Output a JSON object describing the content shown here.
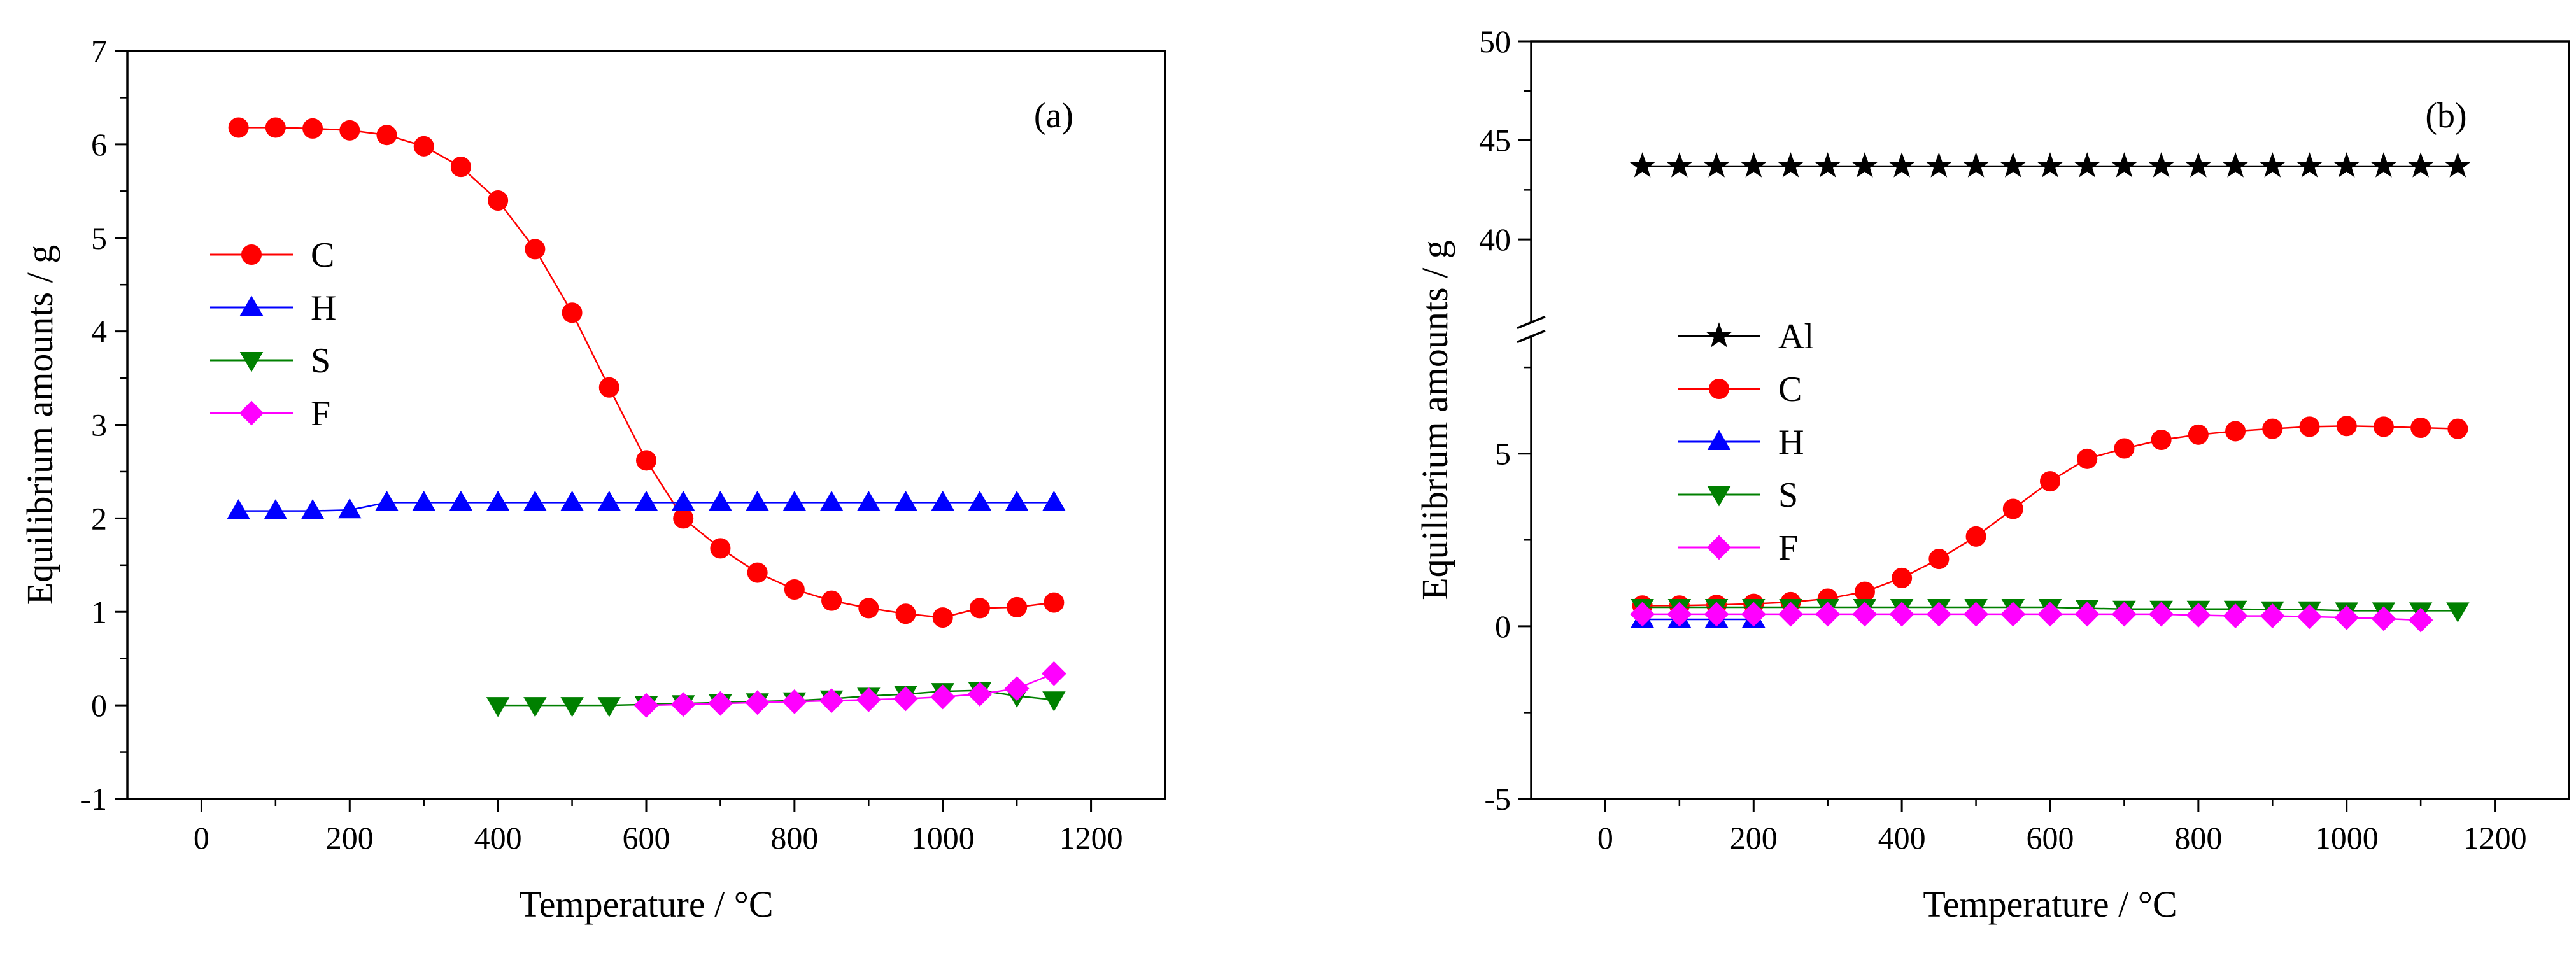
{
  "chart_data": [
    {
      "type": "line",
      "panel_label": "(a)",
      "xlabel": "Temperature / °C",
      "ylabel": "Equilibrium amounts  / g",
      "xlim": [
        -100,
        1300
      ],
      "ylim": [
        -1,
        7
      ],
      "xticks": [
        0,
        200,
        400,
        600,
        800,
        1000,
        1200
      ],
      "yticks": [
        -1,
        0,
        1,
        2,
        3,
        4,
        5,
        6,
        7
      ],
      "legend_position": "center-left",
      "series": [
        {
          "name": "C",
          "color": "#ff0000",
          "marker": "circle",
          "x": [
            50,
            100,
            150,
            200,
            250,
            300,
            350,
            400,
            450,
            500,
            550,
            600,
            650,
            700,
            750,
            800,
            850,
            900,
            950,
            1000,
            1050,
            1100,
            1150
          ],
          "y": [
            6.18,
            6.18,
            6.17,
            6.15,
            6.1,
            5.98,
            5.76,
            5.4,
            4.88,
            4.2,
            3.4,
            2.62,
            2.0,
            1.68,
            1.42,
            1.24,
            1.12,
            1.04,
            0.98,
            0.94,
            1.04,
            1.05,
            1.1
          ]
        },
        {
          "name": "H",
          "color": "#0000ff",
          "marker": "triangle-up",
          "x": [
            50,
            100,
            150,
            200,
            250,
            300,
            350,
            400,
            450,
            500,
            550,
            600,
            650,
            700,
            750,
            800,
            850,
            900,
            950,
            1000,
            1050,
            1100,
            1150
          ],
          "y": [
            2.08,
            2.08,
            2.08,
            2.09,
            2.17,
            2.17,
            2.17,
            2.17,
            2.17,
            2.17,
            2.17,
            2.17,
            2.17,
            2.17,
            2.17,
            2.17,
            2.17,
            2.17,
            2.17,
            2.17,
            2.17,
            2.17,
            2.17
          ]
        },
        {
          "name": "S",
          "color": "#008000",
          "marker": "triangle-down",
          "x": [
            400,
            450,
            500,
            550,
            600,
            650,
            700,
            750,
            800,
            850,
            900,
            950,
            1000,
            1050,
            1100,
            1150
          ],
          "y": [
            0.0,
            0.0,
            0.0,
            0.0,
            0.01,
            0.02,
            0.03,
            0.04,
            0.05,
            0.07,
            0.1,
            0.12,
            0.15,
            0.16,
            0.1,
            0.06
          ]
        },
        {
          "name": "F",
          "color": "#ff00ff",
          "marker": "diamond",
          "x": [
            600,
            650,
            700,
            750,
            800,
            850,
            900,
            950,
            1000,
            1050,
            1100,
            1150
          ],
          "y": [
            0.0,
            0.01,
            0.02,
            0.03,
            0.04,
            0.05,
            0.06,
            0.07,
            0.09,
            0.12,
            0.18,
            0.34
          ]
        }
      ]
    },
    {
      "type": "line",
      "panel_label": "(b)",
      "xlabel": "Temperature / °C",
      "ylabel": "Equilibrium amounts  / g",
      "xlim": [
        -100,
        1300
      ],
      "y_axis_break": {
        "lower_range": [
          -5,
          8
        ],
        "upper_range": [
          36.5,
          50
        ],
        "lower_ticks": [
          -5,
          0,
          5
        ],
        "upper_ticks": [
          40,
          45,
          50
        ]
      },
      "xticks": [
        0,
        200,
        400,
        600,
        800,
        1000,
        1200
      ],
      "legend_position": "center-left",
      "series": [
        {
          "name": "Al",
          "color": "#000000",
          "marker": "star",
          "x": [
            50,
            100,
            150,
            200,
            250,
            300,
            350,
            400,
            450,
            500,
            550,
            600,
            650,
            700,
            750,
            800,
            850,
            900,
            950,
            1000,
            1050,
            1100,
            1150
          ],
          "y": [
            43.7,
            43.7,
            43.7,
            43.7,
            43.7,
            43.7,
            43.7,
            43.7,
            43.7,
            43.7,
            43.7,
            43.7,
            43.7,
            43.7,
            43.7,
            43.7,
            43.7,
            43.7,
            43.7,
            43.7,
            43.7,
            43.7,
            43.7
          ]
        },
        {
          "name": "C",
          "color": "#ff0000",
          "marker": "circle",
          "x": [
            50,
            100,
            150,
            200,
            250,
            300,
            350,
            400,
            450,
            500,
            550,
            600,
            650,
            700,
            750,
            800,
            850,
            900,
            950,
            1000,
            1050,
            1100,
            1150
          ],
          "y": [
            0.6,
            0.6,
            0.62,
            0.65,
            0.7,
            0.8,
            1.0,
            1.4,
            1.95,
            2.6,
            3.4,
            4.2,
            4.85,
            5.15,
            5.4,
            5.55,
            5.65,
            5.72,
            5.78,
            5.8,
            5.78,
            5.75,
            5.72
          ]
        },
        {
          "name": "H",
          "color": "#0000ff",
          "marker": "triangle-up",
          "x": [
            50,
            100,
            150,
            200
          ],
          "y": [
            0.2,
            0.2,
            0.2,
            0.2
          ]
        },
        {
          "name": "S",
          "color": "#008000",
          "marker": "triangle-down",
          "x": [
            50,
            100,
            150,
            200,
            250,
            300,
            350,
            400,
            450,
            500,
            550,
            600,
            650,
            700,
            750,
            800,
            850,
            900,
            950,
            1000,
            1050,
            1100,
            1150
          ],
          "y": [
            0.55,
            0.55,
            0.55,
            0.55,
            0.55,
            0.55,
            0.55,
            0.55,
            0.55,
            0.55,
            0.55,
            0.55,
            0.52,
            0.5,
            0.5,
            0.5,
            0.5,
            0.48,
            0.48,
            0.45,
            0.45,
            0.45,
            0.45
          ]
        },
        {
          "name": "F",
          "color": "#ff00ff",
          "marker": "diamond",
          "x": [
            50,
            100,
            150,
            200,
            250,
            300,
            350,
            400,
            450,
            500,
            550,
            600,
            650,
            700,
            750,
            800,
            850,
            900,
            950,
            1000,
            1050,
            1100
          ],
          "y": [
            0.35,
            0.35,
            0.35,
            0.35,
            0.35,
            0.35,
            0.35,
            0.35,
            0.35,
            0.35,
            0.35,
            0.35,
            0.35,
            0.35,
            0.35,
            0.32,
            0.3,
            0.3,
            0.28,
            0.25,
            0.22,
            0.18
          ]
        }
      ]
    }
  ]
}
